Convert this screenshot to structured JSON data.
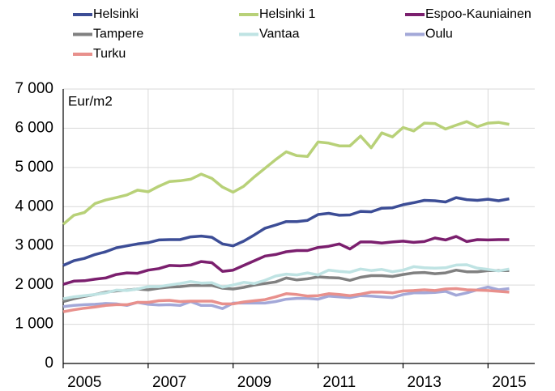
{
  "chart_data": {
    "type": "line",
    "y_label": "Eur/m2",
    "x": [
      2005,
      2005.25,
      2005.5,
      2005.75,
      2006,
      2006.25,
      2006.5,
      2006.75,
      2007,
      2007.25,
      2007.5,
      2007.75,
      2008,
      2008.25,
      2008.5,
      2008.75,
      2009,
      2009.25,
      2009.5,
      2009.75,
      2010,
      2010.25,
      2010.5,
      2010.75,
      2011,
      2011.25,
      2011.5,
      2011.75,
      2012,
      2012.25,
      2012.5,
      2012.75,
      2013,
      2013.25,
      2013.5,
      2013.75,
      2014,
      2014.25,
      2014.5,
      2014.75,
      2015,
      2015.25,
      2015.5
    ],
    "series": [
      {
        "name": "Helsinki",
        "color": "#3c4d96",
        "values": [
          2500,
          2620,
          2680,
          2780,
          2850,
          2950,
          3000,
          3050,
          3080,
          3150,
          3160,
          3160,
          3230,
          3250,
          3220,
          3050,
          3000,
          3120,
          3280,
          3450,
          3530,
          3620,
          3620,
          3650,
          3800,
          3830,
          3780,
          3790,
          3880,
          3870,
          3960,
          3970,
          4050,
          4100,
          4160,
          4150,
          4120,
          4230,
          4180,
          4160,
          4190,
          4150,
          4200
        ]
      },
      {
        "name": "Helsinki 1",
        "color": "#b8d178",
        "values": [
          3550,
          3780,
          3850,
          4080,
          4170,
          4230,
          4300,
          4420,
          4380,
          4520,
          4640,
          4660,
          4700,
          4830,
          4720,
          4500,
          4370,
          4520,
          4760,
          4980,
          5200,
          5400,
          5300,
          5280,
          5650,
          5620,
          5550,
          5550,
          5800,
          5500,
          5880,
          5780,
          6020,
          5930,
          6130,
          6120,
          5980,
          6080,
          6170,
          6040,
          6130,
          6150,
          6100
        ]
      },
      {
        "name": "Espoo-Kauniainen",
        "color": "#7b1f6e",
        "values": [
          2020,
          2100,
          2110,
          2150,
          2180,
          2270,
          2310,
          2300,
          2380,
          2420,
          2500,
          2490,
          2510,
          2600,
          2570,
          2350,
          2380,
          2500,
          2620,
          2740,
          2780,
          2850,
          2880,
          2880,
          2960,
          2990,
          3050,
          2920,
          3100,
          3100,
          3070,
          3100,
          3120,
          3090,
          3110,
          3200,
          3150,
          3240,
          3110,
          3160,
          3150,
          3160,
          3160
        ]
      },
      {
        "name": "Tampere",
        "color": "#808080",
        "values": [
          1580,
          1650,
          1710,
          1760,
          1820,
          1850,
          1870,
          1900,
          1880,
          1920,
          1950,
          1960,
          1990,
          1990,
          1990,
          1920,
          1900,
          1940,
          2000,
          2040,
          2080,
          2180,
          2130,
          2160,
          2210,
          2190,
          2180,
          2120,
          2200,
          2240,
          2240,
          2220,
          2270,
          2310,
          2320,
          2290,
          2310,
          2380,
          2340,
          2340,
          2370,
          2370,
          2370
        ]
      },
      {
        "name": "Vantaa",
        "color": "#bfe3e3",
        "values": [
          1650,
          1700,
          1730,
          1760,
          1800,
          1870,
          1860,
          1900,
          1960,
          1960,
          2000,
          2040,
          2090,
          2050,
          2060,
          1950,
          2000,
          2070,
          2040,
          2120,
          2230,
          2280,
          2260,
          2310,
          2260,
          2380,
          2350,
          2330,
          2410,
          2370,
          2400,
          2340,
          2380,
          2470,
          2440,
          2430,
          2440,
          2510,
          2520,
          2430,
          2400,
          2360,
          2410
        ]
      },
      {
        "name": "Oulu",
        "color": "#a3a8d8",
        "values": [
          1450,
          1480,
          1500,
          1510,
          1530,
          1520,
          1480,
          1560,
          1510,
          1490,
          1500,
          1480,
          1580,
          1480,
          1480,
          1400,
          1540,
          1540,
          1540,
          1540,
          1580,
          1640,
          1660,
          1660,
          1640,
          1720,
          1700,
          1680,
          1730,
          1720,
          1700,
          1680,
          1760,
          1800,
          1800,
          1810,
          1840,
          1740,
          1800,
          1880,
          1950,
          1880,
          1910
        ]
      },
      {
        "name": "Turku",
        "color": "#e8908c",
        "values": [
          1320,
          1370,
          1410,
          1440,
          1480,
          1500,
          1500,
          1560,
          1560,
          1600,
          1610,
          1580,
          1590,
          1590,
          1590,
          1520,
          1520,
          1570,
          1600,
          1630,
          1700,
          1780,
          1760,
          1720,
          1730,
          1780,
          1760,
          1730,
          1770,
          1820,
          1820,
          1800,
          1850,
          1860,
          1880,
          1860,
          1900,
          1910,
          1880,
          1870,
          1860,
          1840,
          1820
        ]
      }
    ],
    "xlim": [
      2005,
      2016.1
    ],
    "xticks": [
      2005,
      2007,
      2009,
      2011,
      2013,
      2015
    ],
    "ylim": [
      0,
      7000
    ],
    "yticks": [
      0,
      {
        "value": 1000,
        "label": "1 000"
      },
      {
        "value": 2000,
        "label": "2 000"
      },
      {
        "value": 3000,
        "label": "3 000"
      },
      {
        "value": 4000,
        "label": "4 000"
      },
      {
        "value": 5000,
        "label": "5 000"
      },
      {
        "value": 6000,
        "label": "6 000"
      },
      {
        "value": 7000,
        "label": "7 000"
      }
    ],
    "grid": true
  }
}
